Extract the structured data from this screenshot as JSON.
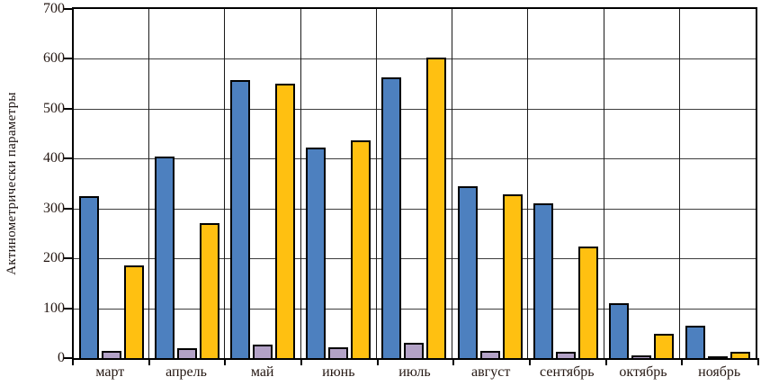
{
  "chart_data": {
    "type": "bar",
    "title": "",
    "xlabel": "",
    "ylabel": "Актинометрически параметры",
    "ylim": [
      0,
      700
    ],
    "yticks": [
      0,
      100,
      200,
      300,
      400,
      500,
      600,
      700
    ],
    "grid": true,
    "legend_position": "none",
    "categories": [
      "март",
      "апрель",
      "май",
      "июнь",
      "июль",
      "август",
      "сентябрь",
      "октябрь",
      "ноябрь"
    ],
    "series": [
      {
        "name": "blue-series",
        "color": "#4D80BF",
        "values": [
          325,
          405,
          558,
          423,
          563,
          345,
          310,
          110,
          65
        ]
      },
      {
        "name": "lavender-series",
        "color": "#B3A2C7",
        "values": [
          15,
          20,
          27,
          22,
          30,
          15,
          13,
          5,
          2
        ]
      },
      {
        "name": "yellow-series",
        "color": "#FFC011",
        "values": [
          185,
          270,
          550,
          436,
          603,
          328,
          223,
          48,
          13
        ]
      }
    ],
    "colors": {
      "frame": "#000000",
      "gridline": "#3d3d3d",
      "text": "#241712",
      "background": "#ffffff"
    }
  }
}
